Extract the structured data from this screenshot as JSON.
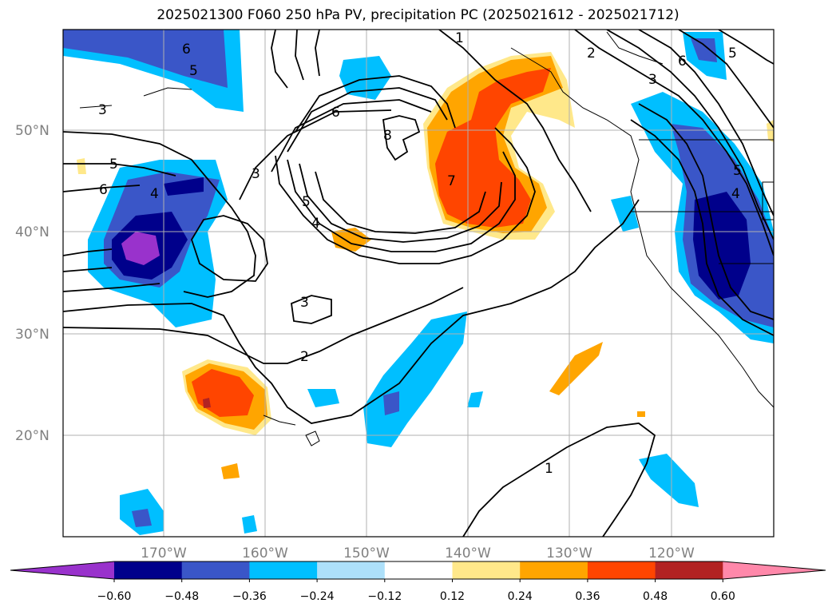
{
  "title": "2025021300 F060 250 hPa PV, precipitation PC (2025021612 - 2025021712)",
  "map": {
    "lat_labels": [
      "50°N",
      "40°N",
      "30°N",
      "20°N"
    ],
    "lon_labels": [
      "170°W",
      "160°W",
      "150°W",
      "140°W",
      "130°W",
      "120°W"
    ],
    "contour_labels": [
      "6",
      "5",
      "3",
      "1",
      "2",
      "3",
      "6",
      "5",
      "6",
      "4",
      "3",
      "8",
      "7",
      "5",
      "4",
      "3",
      "2",
      "1",
      "5",
      "4",
      "6",
      "5"
    ]
  },
  "colorbar": {
    "ticks": [
      "−0.60",
      "−0.48",
      "−0.36",
      "−0.24",
      "−0.12",
      "0.12",
      "0.24",
      "0.36",
      "0.48",
      "0.60"
    ],
    "colors": [
      "#9932cc",
      "#00008b",
      "#3a56c8",
      "#00bfff",
      "#ade0fa",
      "#ffffff",
      "#ffe88a",
      "#ffa500",
      "#ff4500",
      "#b22222",
      "#ff88aa"
    ]
  }
}
